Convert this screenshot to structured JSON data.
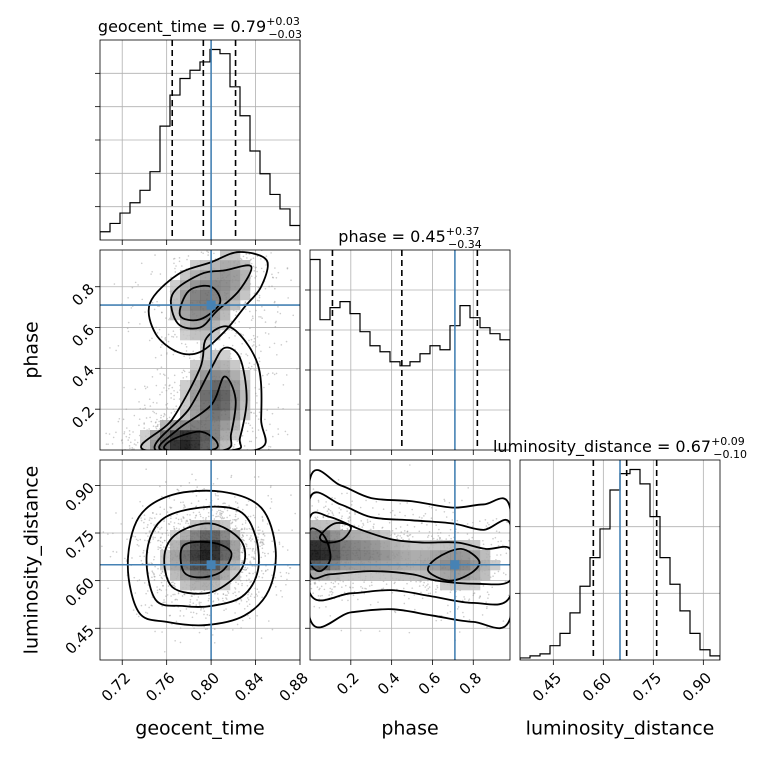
{
  "figure": {
    "truth_color": "#4682b4"
  },
  "chart_data": [
    {
      "id": "geocent-time-hist",
      "type": "histogram",
      "title": {
        "main": "geocent_time = 0.79",
        "sup": "+0.03",
        "sub": "−0.03"
      },
      "xlim": [
        0.7,
        0.88
      ],
      "bins_x": [
        0.7,
        0.709,
        0.718,
        0.727,
        0.736,
        0.745,
        0.754,
        0.763,
        0.772,
        0.781,
        0.79,
        0.799,
        0.808,
        0.817,
        0.826,
        0.835,
        0.844,
        0.853,
        0.862,
        0.871,
        0.88
      ],
      "counts": [
        0.04,
        0.08,
        0.13,
        0.18,
        0.24,
        0.33,
        0.55,
        0.7,
        0.78,
        0.82,
        0.86,
        0.92,
        0.9,
        0.74,
        0.6,
        0.43,
        0.32,
        0.22,
        0.15,
        0.07
      ],
      "quantiles": [
        0.765,
        0.793,
        0.822
      ],
      "truth": 0.8
    },
    {
      "id": "phase-vs-geocent-time",
      "type": "2d-histogram-contour",
      "x_var": "geocent_time",
      "y_var": "phase",
      "xlim": [
        0.7,
        0.88
      ],
      "ylim": [
        0.0,
        0.98
      ],
      "blobs": [
        {
          "x": 0.775,
          "y": 0.04,
          "sx": 0.02,
          "sy": 0.06,
          "w": 1.0
        },
        {
          "x": 0.805,
          "y": 0.26,
          "sx": 0.018,
          "sy": 0.12,
          "w": 0.75
        },
        {
          "x": 0.79,
          "y": 0.72,
          "sx": 0.018,
          "sy": 0.12,
          "w": 0.55
        },
        {
          "x": 0.82,
          "y": 0.85,
          "sx": 0.016,
          "sy": 0.1,
          "w": 0.35
        }
      ],
      "contours": [
        [
          [
            0.76,
            0.0
          ],
          [
            0.765,
            0.05
          ],
          [
            0.79,
            0.09
          ],
          [
            0.805,
            0.04
          ],
          [
            0.8,
            0.0
          ]
        ],
        [
          [
            0.755,
            0.0
          ],
          [
            0.77,
            0.1
          ],
          [
            0.8,
            0.22
          ],
          [
            0.812,
            0.36
          ],
          [
            0.822,
            0.25
          ],
          [
            0.818,
            0.08
          ],
          [
            0.812,
            0.0
          ]
        ],
        [
          [
            0.75,
            0.0
          ],
          [
            0.78,
            0.2
          ],
          [
            0.8,
            0.4
          ],
          [
            0.812,
            0.5
          ],
          [
            0.826,
            0.45
          ],
          [
            0.832,
            0.25
          ],
          [
            0.826,
            0.06
          ],
          [
            0.82,
            0.0
          ]
        ],
        [
          [
            0.74,
            0.0
          ],
          [
            0.765,
            0.15
          ],
          [
            0.79,
            0.4
          ],
          [
            0.796,
            0.55
          ],
          [
            0.818,
            0.6
          ],
          [
            0.842,
            0.42
          ],
          [
            0.845,
            0.15
          ],
          [
            0.84,
            0.0
          ]
        ],
        [
          [
            0.772,
            0.66
          ],
          [
            0.78,
            0.78
          ],
          [
            0.8,
            0.8
          ],
          [
            0.808,
            0.72
          ],
          [
            0.79,
            0.64
          ]
        ],
        [
          [
            0.77,
            0.62
          ],
          [
            0.765,
            0.76
          ],
          [
            0.79,
            0.86
          ],
          [
            0.812,
            0.88
          ],
          [
            0.836,
            0.9
          ],
          [
            0.825,
            0.78
          ],
          [
            0.805,
            0.68
          ],
          [
            0.79,
            0.6
          ]
        ],
        [
          [
            0.75,
            0.57
          ],
          [
            0.745,
            0.72
          ],
          [
            0.77,
            0.86
          ],
          [
            0.8,
            0.92
          ],
          [
            0.825,
            0.97
          ],
          [
            0.85,
            0.93
          ],
          [
            0.845,
            0.8
          ],
          [
            0.83,
            0.7
          ],
          [
            0.812,
            0.58
          ],
          [
            0.79,
            0.48
          ],
          [
            0.77,
            0.48
          ]
        ]
      ],
      "truth": [
        0.8,
        0.71
      ]
    },
    {
      "id": "phase-hist",
      "type": "histogram",
      "title": {
        "main": "phase = 0.45",
        "sup": "+0.37",
        "sub": "−0.34"
      },
      "xlim": [
        0.0,
        0.98
      ],
      "bins_x": [
        0.0,
        0.049,
        0.098,
        0.147,
        0.196,
        0.245,
        0.294,
        0.343,
        0.392,
        0.441,
        0.49,
        0.539,
        0.588,
        0.637,
        0.686,
        0.735,
        0.784,
        0.833,
        0.882,
        0.931,
        0.98
      ],
      "counts": [
        0.95,
        0.65,
        0.71,
        0.74,
        0.68,
        0.59,
        0.52,
        0.49,
        0.44,
        0.42,
        0.44,
        0.48,
        0.52,
        0.5,
        0.62,
        0.72,
        0.66,
        0.61,
        0.58,
        0.55
      ],
      "quantiles": [
        0.11,
        0.45,
        0.82
      ],
      "truth": 0.71
    },
    {
      "id": "luminosity-distance-vs-geocent-time",
      "type": "2d-histogram-contour",
      "x_var": "geocent_time",
      "y_var": "luminosity_distance",
      "xlim": [
        0.7,
        0.88
      ],
      "ylim": [
        0.35,
        0.98
      ],
      "blobs": [
        {
          "x": 0.792,
          "y": 0.665,
          "sx": 0.02,
          "sy": 0.06,
          "w": 1.0
        },
        {
          "x": 0.802,
          "y": 0.72,
          "sx": 0.015,
          "sy": 0.04,
          "w": 0.6
        }
      ],
      "contours": [
        [
          [
            0.775,
            0.63
          ],
          [
            0.775,
            0.71
          ],
          [
            0.8,
            0.72
          ],
          [
            0.818,
            0.69
          ],
          [
            0.81,
            0.63
          ],
          [
            0.79,
            0.61
          ]
        ],
        [
          [
            0.765,
            0.58
          ],
          [
            0.758,
            0.68
          ],
          [
            0.77,
            0.75
          ],
          [
            0.8,
            0.78
          ],
          [
            0.826,
            0.73
          ],
          [
            0.83,
            0.66
          ],
          [
            0.818,
            0.6
          ],
          [
            0.795,
            0.56
          ]
        ],
        [
          [
            0.75,
            0.54
          ],
          [
            0.742,
            0.68
          ],
          [
            0.755,
            0.79
          ],
          [
            0.79,
            0.83
          ],
          [
            0.825,
            0.82
          ],
          [
            0.84,
            0.74
          ],
          [
            0.842,
            0.63
          ],
          [
            0.828,
            0.55
          ],
          [
            0.8,
            0.52
          ],
          [
            0.775,
            0.52
          ]
        ],
        [
          [
            0.735,
            0.5
          ],
          [
            0.725,
            0.65
          ],
          [
            0.735,
            0.8
          ],
          [
            0.765,
            0.87
          ],
          [
            0.81,
            0.88
          ],
          [
            0.845,
            0.83
          ],
          [
            0.858,
            0.7
          ],
          [
            0.852,
            0.57
          ],
          [
            0.83,
            0.49
          ],
          [
            0.795,
            0.46
          ],
          [
            0.76,
            0.47
          ]
        ]
      ],
      "truth": [
        0.8,
        0.65
      ]
    },
    {
      "id": "luminosity-distance-vs-phase",
      "type": "2d-histogram-contour",
      "x_var": "phase",
      "y_var": "luminosity_distance",
      "xlim": [
        0.0,
        0.98
      ],
      "ylim": [
        0.35,
        0.98
      ],
      "blobs": [
        {
          "x": 0.03,
          "y": 0.69,
          "sx": 0.07,
          "sy": 0.05,
          "w": 1.0
        },
        {
          "x": 0.2,
          "y": 0.7,
          "sx": 0.15,
          "sy": 0.05,
          "w": 0.55
        },
        {
          "x": 0.75,
          "y": 0.65,
          "sx": 0.12,
          "sy": 0.05,
          "w": 0.55
        },
        {
          "x": 0.45,
          "y": 0.66,
          "sx": 0.2,
          "sy": 0.05,
          "w": 0.35
        }
      ],
      "contours": [
        [
          [
            0.0,
            0.66
          ],
          [
            0.05,
            0.63
          ],
          [
            0.1,
            0.67
          ],
          [
            0.07,
            0.74
          ],
          [
            0.0,
            0.76
          ]
        ],
        [
          [
            0.05,
            0.74
          ],
          [
            0.12,
            0.78
          ],
          [
            0.2,
            0.77
          ],
          [
            0.16,
            0.73
          ],
          [
            0.08,
            0.72
          ]
        ],
        [
          [
            0.58,
            0.63
          ],
          [
            0.68,
            0.6
          ],
          [
            0.78,
            0.62
          ],
          [
            0.83,
            0.66
          ],
          [
            0.74,
            0.7
          ],
          [
            0.62,
            0.67
          ]
        ],
        [
          [
            0.0,
            0.62
          ],
          [
            0.1,
            0.62
          ],
          [
            0.3,
            0.63
          ],
          [
            0.5,
            0.62
          ],
          [
            0.62,
            0.6
          ],
          [
            0.82,
            0.59
          ],
          [
            0.98,
            0.6
          ],
          [
            0.98,
            0.7
          ],
          [
            0.86,
            0.7
          ],
          [
            0.72,
            0.72
          ],
          [
            0.55,
            0.72
          ],
          [
            0.4,
            0.73
          ],
          [
            0.25,
            0.76
          ],
          [
            0.1,
            0.8
          ],
          [
            0.0,
            0.8
          ]
        ],
        [
          [
            0.0,
            0.56
          ],
          [
            0.2,
            0.56
          ],
          [
            0.4,
            0.57
          ],
          [
            0.6,
            0.55
          ],
          [
            0.8,
            0.53
          ],
          [
            0.98,
            0.55
          ],
          [
            0.98,
            0.78
          ],
          [
            0.85,
            0.76
          ],
          [
            0.7,
            0.78
          ],
          [
            0.5,
            0.79
          ],
          [
            0.3,
            0.8
          ],
          [
            0.15,
            0.84
          ],
          [
            0.0,
            0.86
          ]
        ],
        [
          [
            0.0,
            0.48
          ],
          [
            0.2,
            0.5
          ],
          [
            0.4,
            0.51
          ],
          [
            0.6,
            0.49
          ],
          [
            0.8,
            0.47
          ],
          [
            0.98,
            0.48
          ],
          [
            0.98,
            0.83
          ],
          [
            0.85,
            0.84
          ],
          [
            0.7,
            0.83
          ],
          [
            0.5,
            0.85
          ],
          [
            0.3,
            0.86
          ],
          [
            0.15,
            0.9
          ],
          [
            0.0,
            0.92
          ]
        ]
      ],
      "truth": [
        0.71,
        0.65
      ]
    },
    {
      "id": "luminosity-distance-hist",
      "type": "histogram",
      "title": {
        "main": "luminosity_distance = 0.67",
        "sup": "+0.09",
        "sub": "−0.10"
      },
      "xlim": [
        0.35,
        0.95
      ],
      "bins_x": [
        0.35,
        0.38,
        0.41,
        0.44,
        0.47,
        0.5,
        0.53,
        0.56,
        0.59,
        0.62,
        0.65,
        0.68,
        0.71,
        0.74,
        0.77,
        0.8,
        0.83,
        0.86,
        0.89,
        0.92,
        0.95
      ],
      "counts": [
        0.01,
        0.02,
        0.03,
        0.07,
        0.13,
        0.23,
        0.36,
        0.5,
        0.64,
        0.83,
        0.91,
        0.93,
        0.86,
        0.7,
        0.5,
        0.37,
        0.24,
        0.13,
        0.05,
        0.02
      ],
      "quantiles": [
        0.57,
        0.67,
        0.76
      ],
      "truth": 0.65
    }
  ],
  "axes": {
    "geocent_time": {
      "label": "geocent_time",
      "ticks": [
        0.72,
        0.76,
        0.8,
        0.84,
        0.88
      ],
      "tick_labels": [
        "0.72",
        "0.76",
        "0.80",
        "0.84",
        "0.88"
      ]
    },
    "phase_x": {
      "label": "phase",
      "ticks": [
        0.2,
        0.4,
        0.6,
        0.8
      ],
      "tick_labels": [
        "0.2",
        "0.4",
        "0.6",
        "0.8"
      ]
    },
    "phase_y": {
      "label": "phase",
      "ticks": [
        0.2,
        0.4,
        0.6,
        0.8
      ],
      "tick_labels": [
        "0.2",
        "0.4",
        "0.6",
        "0.8"
      ]
    },
    "luminosity_distance_x": {
      "label": "luminosity_distance",
      "ticks": [
        0.45,
        0.6,
        0.75,
        0.9
      ],
      "tick_labels": [
        "0.45",
        "0.60",
        "0.75",
        "0.90"
      ]
    },
    "luminosity_distance_y": {
      "label": "luminosity_distance",
      "ticks": [
        0.45,
        0.6,
        0.75,
        0.9
      ],
      "tick_labels": [
        "0.45",
        "0.60",
        "0.75",
        "0.90"
      ]
    }
  }
}
